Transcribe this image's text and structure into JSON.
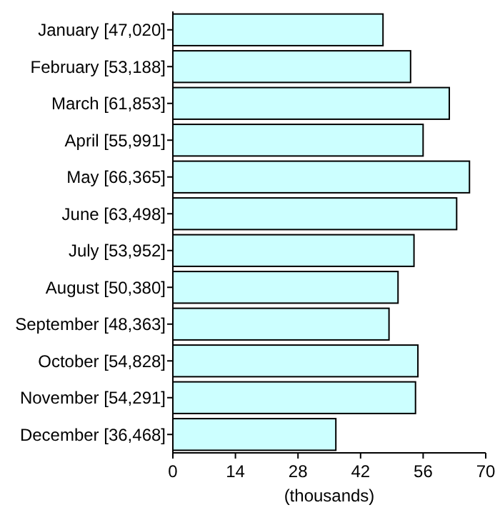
{
  "chart_data": {
    "type": "bar",
    "orientation": "horizontal",
    "xlabel": "(thousands)",
    "categories": [
      "January [47,020]",
      "February [53,188]",
      "March [61,853]",
      "April [55,991]",
      "May [66,365]",
      "June [63,498]",
      "July [53,952]",
      "August [50,380]",
      "September [48,363]",
      "October [54,828]",
      "November [54,291]",
      "December [36,468]"
    ],
    "values": [
      47.02,
      53.188,
      61.853,
      55.991,
      66.365,
      63.498,
      53.952,
      50.38,
      48.363,
      54.828,
      54.291,
      36.468
    ],
    "color": "#ccffff",
    "xlim": [
      0,
      70
    ],
    "xticks": [
      0,
      14,
      28,
      42,
      56,
      70
    ],
    "grid": false
  }
}
